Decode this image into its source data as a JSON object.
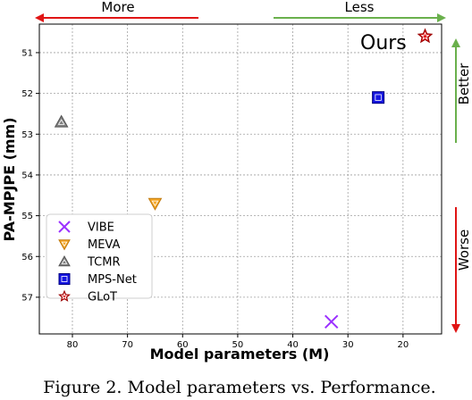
{
  "chart_data": {
    "type": "scatter",
    "xlabel": "Model parameters (M)",
    "ylabel": "PA-MPJPE (mm)",
    "xlim": [
      86,
      13
    ],
    "ylim": [
      57.9,
      50.3
    ],
    "x_ticks": [
      80,
      70,
      60,
      50,
      40,
      30,
      20
    ],
    "y_ticks": [
      51,
      52,
      53,
      54,
      55,
      56,
      57
    ],
    "grid": true,
    "x_inverted": true,
    "y_inverted": true,
    "legend_position": "lower-left",
    "series": [
      {
        "name": "VIBE",
        "marker": "x",
        "color": "#9b30ff",
        "x": 33.0,
        "y": 57.6
      },
      {
        "name": "MEVA",
        "marker": "triangle-down",
        "color": "#f5a623",
        "x": 65.0,
        "y": 54.7
      },
      {
        "name": "TCMR",
        "marker": "triangle-up",
        "color": "#808080",
        "x": 82.0,
        "y": 52.7
      },
      {
        "name": "MPS-Net",
        "marker": "square",
        "color": "#1515e0",
        "x": 24.5,
        "y": 52.1
      },
      {
        "name": "GLoT",
        "marker": "star",
        "color": "#e01515",
        "x": 16.0,
        "y": 50.6
      }
    ],
    "annotations": {
      "ours": "Ours",
      "more": "More",
      "less": "Less",
      "better": "Better",
      "worse": "Worse"
    }
  },
  "colors": {
    "arrow_red": "#e01515",
    "arrow_green": "#6ab04c",
    "grid": "#a0a0a0"
  },
  "caption": "Figure 2. Model parameters vs. Performance."
}
